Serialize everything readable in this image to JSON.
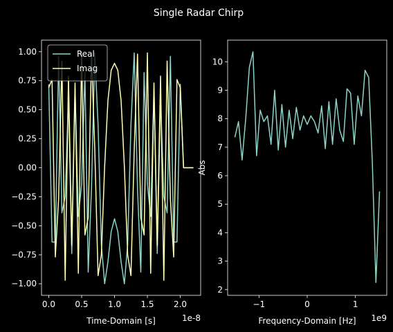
{
  "title": "Single Radar Chirp",
  "chart_data": [
    {
      "type": "line",
      "x": [
        0,
        5e-10,
        1e-09,
        1.5e-09,
        2e-09,
        2.5e-09,
        3e-09,
        3.5e-09,
        4e-09,
        4.5e-09,
        5e-09,
        5.5e-09,
        6e-09,
        6.5e-09,
        7e-09,
        7.5e-09,
        8e-09,
        8.5e-09,
        9e-09,
        9.5e-09,
        1e-08,
        1.05e-08,
        1.1e-08,
        1.15e-08,
        1.2e-08,
        1.25e-08,
        1.3e-08,
        1.35e-08,
        1.4e-08,
        1.45e-08,
        1.5e-08,
        1.55e-08,
        1.6e-08,
        1.65e-08,
        1.7e-08,
        1.75e-08,
        1.8e-08,
        1.85e-08,
        1.9e-08,
        1.95e-08,
        2e-08,
        2.05e-08,
        2.1e-08,
        2.15e-08,
        2.2e-08
      ],
      "series": [
        {
          "name": "Real",
          "color": "#8dd3c7",
          "values": [
            0.72,
            -0.64,
            -0.64,
            0.96,
            -0.39,
            -0.25,
            0.61,
            -0.74,
            0.68,
            -0.42,
            -0.14,
            0.82,
            -0.9,
            -0.18,
            0.99,
            0.37,
            -0.66,
            -1.0,
            -0.81,
            -0.55,
            -0.44,
            -0.55,
            -0.81,
            -1.0,
            -0.66,
            0.37,
            0.99,
            -0.18,
            -0.9,
            0.82,
            -0.14,
            -0.42,
            0.68,
            -0.74,
            0.61,
            -0.25,
            -0.39,
            0.96,
            -0.64,
            -0.64,
            0.72,
            0,
            0,
            0,
            0
          ]
        },
        {
          "name": "Imag",
          "color": "#feffb3",
          "values": [
            0.69,
            0.76,
            -0.77,
            -0.27,
            0.92,
            -0.97,
            0.79,
            -0.67,
            0.73,
            -0.91,
            0.99,
            -0.58,
            -0.43,
            0.98,
            0.16,
            -0.93,
            -0.75,
            0.01,
            0.58,
            0.84,
            0.9,
            0.84,
            0.58,
            0.01,
            -0.75,
            -0.93,
            0.16,
            0.98,
            -0.43,
            -0.58,
            0.99,
            -0.91,
            0.73,
            -0.67,
            0.79,
            -0.97,
            0.92,
            -0.27,
            -0.77,
            0.76,
            0.69,
            0,
            0,
            0,
            0
          ]
        }
      ],
      "xlabel": "Time-Domain [s]",
      "x_offset_label": "1e-8",
      "xlim": [
        -1.1e-09,
        2.31e-08
      ],
      "ylim": [
        -1.1,
        1.1
      ],
      "xticks": [
        {
          "value": 0,
          "label": "0.0"
        },
        {
          "value": 5e-09,
          "label": "0.5"
        },
        {
          "value": 1e-08,
          "label": "1.0"
        },
        {
          "value": 1.5e-08,
          "label": "1.5"
        },
        {
          "value": 2e-08,
          "label": "2.0"
        }
      ],
      "yticks": [
        {
          "value": -1,
          "label": "−1.00"
        },
        {
          "value": -0.75,
          "label": "−0.75"
        },
        {
          "value": -0.5,
          "label": "−0.50"
        },
        {
          "value": -0.25,
          "label": "−0.25"
        },
        {
          "value": 0,
          "label": "0.00"
        },
        {
          "value": 0.25,
          "label": "0.25"
        },
        {
          "value": 0.5,
          "label": "0.50"
        },
        {
          "value": 0.75,
          "label": "0.75"
        },
        {
          "value": 1,
          "label": "1.00"
        }
      ],
      "legend": "upper left"
    },
    {
      "type": "line",
      "x": [
        -1500000000.0,
        -1425000000.0,
        -1350000000.0,
        -1275000000.0,
        -1200000000.0,
        -1125000000.0,
        -1050000000.0,
        -975000000.0,
        -900000000.0,
        -825000000.0,
        -750000000.0,
        -675000000.0,
        -600000000.0,
        -525000000.0,
        -450000000.0,
        -375000000.0,
        -300000000.0,
        -225000000.0,
        -150000000.0,
        -75000000.0,
        0,
        75000000.0,
        150000000.0,
        225000000.0,
        300000000.0,
        375000000.0,
        450000000.0,
        525000000.0,
        600000000.0,
        675000000.0,
        750000000.0,
        825000000.0,
        900000000.0,
        975000000.0,
        1050000000.0,
        1125000000.0,
        1200000000.0,
        1275000000.0,
        1350000000.0,
        1425000000.0,
        1500000000.0
      ],
      "values": [
        7.35,
        7.9,
        6.55,
        8.0,
        9.8,
        10.35,
        6.7,
        8.3,
        7.9,
        8.1,
        7.1,
        9.0,
        6.9,
        8.5,
        7.0,
        8.3,
        7.3,
        8.4,
        7.6,
        8.1,
        7.8,
        8.1,
        7.9,
        7.5,
        8.45,
        6.95,
        8.6,
        7.1,
        8.7,
        7.6,
        7.2,
        9.05,
        8.9,
        7.1,
        8.8,
        8.1,
        9.7,
        9.45,
        6.5,
        2.25,
        5.45
      ],
      "color": "#8dd3c7",
      "xlabel": "Frequency-Domain [Hz]",
      "ylabel": "Abs",
      "x_offset_label": "1e9",
      "xlim": [
        -1650000000.0,
        1650000000.0
      ],
      "ylim": [
        1.8,
        10.76
      ],
      "xticks": [
        {
          "value": -1000000000.0,
          "label": "−1"
        },
        0,
        {
          "value": 1000000000.0,
          "label": "1"
        }
      ],
      "yticks": [
        2,
        3,
        4,
        5,
        6,
        7,
        8,
        9,
        10
      ]
    }
  ]
}
